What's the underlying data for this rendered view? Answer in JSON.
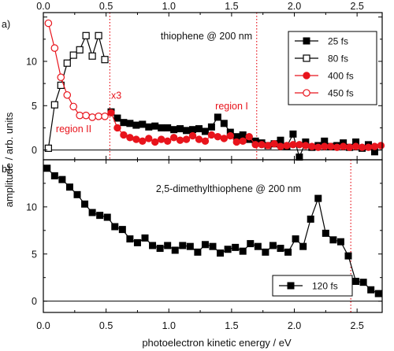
{
  "chart_data": [
    {
      "panel_label": "a)",
      "type": "line",
      "title": "thiophene @ 200 nm",
      "xlabel": "photoelectron kinetic energy / eV",
      "ylabel": "amplitude / arb. units",
      "xlim": [
        0,
        2.7
      ],
      "ylim": [
        -1.1,
        15.5
      ],
      "x_ticks": [
        "0.0",
        "0.5",
        "1.0",
        "1.5",
        "2.0",
        "2.5"
      ],
      "y_ticks": [
        "0",
        "5",
        "10"
      ],
      "legend_position": "top-right",
      "series": [
        {
          "name": "25 fs",
          "color": "#000000",
          "marker": "filled-square",
          "x": [
            0.54,
            0.59,
            0.64,
            0.69,
            0.74,
            0.79,
            0.84,
            0.89,
            0.94,
            0.99,
            1.04,
            1.09,
            1.14,
            1.19,
            1.24,
            1.29,
            1.34,
            1.39,
            1.44,
            1.49,
            1.54,
            1.59,
            1.64,
            1.69,
            1.74,
            1.79,
            1.84,
            1.89,
            1.94,
            1.99,
            2.04,
            2.09,
            2.14,
            2.19,
            2.24,
            2.29,
            2.34,
            2.39,
            2.44,
            2.49,
            2.54,
            2.59,
            2.64
          ],
          "y": [
            4.3,
            3.6,
            3.1,
            3.0,
            2.8,
            2.9,
            2.6,
            2.7,
            2.5,
            2.5,
            2.3,
            2.4,
            2.2,
            2.3,
            2.4,
            2.1,
            2.6,
            3.7,
            3.0,
            2.0,
            1.5,
            1.7,
            1.2,
            1.0,
            0.8,
            0.5,
            0.7,
            1.1,
            0.4,
            1.8,
            -0.8,
            0.9,
            0.3,
            0.5,
            1.0,
            0.4,
            0.5,
            0.8,
            0.3,
            0.9,
            0.2,
            0.6,
            -0.2
          ]
        },
        {
          "name": "80 fs",
          "color": "#000000",
          "marker": "open-square",
          "x": [
            0.04,
            0.09,
            0.14,
            0.19,
            0.24,
            0.29,
            0.34,
            0.39,
            0.44,
            0.49
          ],
          "y": [
            0.2,
            5.1,
            7.3,
            9.8,
            10.7,
            11.3,
            12.9,
            10.6,
            12.9,
            10.2
          ]
        },
        {
          "name": "400 fs",
          "color": "#e8141c",
          "marker": "filled-circle",
          "x": [
            0.54,
            0.59,
            0.64,
            0.69,
            0.74,
            0.79,
            0.84,
            0.89,
            0.94,
            0.99,
            1.04,
            1.09,
            1.14,
            1.19,
            1.24,
            1.29,
            1.34,
            1.39,
            1.44,
            1.49,
            1.54,
            1.59,
            1.64,
            1.69,
            1.74,
            1.79,
            1.84,
            1.89,
            1.94,
            1.99,
            2.04,
            2.09,
            2.14,
            2.19,
            2.24,
            2.29,
            2.34,
            2.39,
            2.44,
            2.49,
            2.54,
            2.59,
            2.64,
            2.69
          ],
          "y": [
            4.2,
            2.5,
            1.7,
            1.4,
            1.2,
            1.0,
            1.3,
            0.9,
            1.2,
            1.0,
            1.4,
            1.1,
            1.2,
            1.6,
            1.2,
            1.0,
            1.7,
            1.5,
            1.3,
            1.6,
            0.9,
            1.0,
            1.5,
            0.6,
            0.6,
            0.5,
            0.7,
            0.4,
            0.5,
            0.6,
            0.6,
            0.5,
            0.4,
            0.3,
            0.4,
            0.4,
            0.3,
            0.4,
            0.3,
            0.4,
            0.3,
            0.3,
            0.4,
            0.5
          ]
        },
        {
          "name": "450 fs",
          "color": "#e8141c",
          "marker": "open-circle",
          "x": [
            0.04,
            0.09,
            0.14,
            0.19,
            0.24,
            0.29,
            0.34,
            0.39,
            0.44,
            0.49
          ],
          "y": [
            14.3,
            11.5,
            8.2,
            6.2,
            4.9,
            3.9,
            3.9,
            3.7,
            3.8,
            3.8
          ]
        }
      ],
      "vlines": [
        {
          "x": 0.53,
          "color": "#e8141c"
        },
        {
          "x": 1.7,
          "color": "#e8141c"
        }
      ],
      "annotations": [
        {
          "text": "x3",
          "x": 0.54,
          "y": 5.8,
          "color": "#e8141c"
        },
        {
          "text": "region I",
          "x": 1.37,
          "y": 4.6,
          "color": "#e8141c"
        },
        {
          "text": "region II",
          "x": 0.1,
          "y": 2.0,
          "color": "#e8141c"
        }
      ]
    },
    {
      "panel_label": "b)",
      "type": "line",
      "title": "2,5-dimethylthiophene @ 200 nm",
      "xlabel": "photoelectron kinetic energy / eV",
      "ylabel": "amplitude / arb. units",
      "xlim": [
        0,
        2.7
      ],
      "ylim": [
        -1.2,
        15.0
      ],
      "x_ticks": [
        "0.0",
        "0.5",
        "1.0",
        "1.5",
        "2.0",
        "2.5"
      ],
      "y_ticks": [
        "0",
        "5",
        "10"
      ],
      "legend_position": "bottom-right",
      "series": [
        {
          "name": "120 fs",
          "color": "#000000",
          "marker": "filled-square",
          "x": [
            0.03,
            0.09,
            0.15,
            0.21,
            0.27,
            0.33,
            0.39,
            0.45,
            0.51,
            0.57,
            0.63,
            0.69,
            0.75,
            0.81,
            0.87,
            0.93,
            0.99,
            1.05,
            1.11,
            1.17,
            1.23,
            1.29,
            1.35,
            1.41,
            1.47,
            1.53,
            1.59,
            1.65,
            1.71,
            1.77,
            1.83,
            1.89,
            1.95,
            2.01,
            2.07,
            2.13,
            2.19,
            2.25,
            2.31,
            2.37,
            2.43,
            2.49,
            2.55,
            2.61,
            2.67
          ],
          "y": [
            14.1,
            13.3,
            12.9,
            12.1,
            11.3,
            10.3,
            9.4,
            9.1,
            8.9,
            7.9,
            7.6,
            6.6,
            6.2,
            6.7,
            5.9,
            5.6,
            5.9,
            5.4,
            5.9,
            5.8,
            5.2,
            6.0,
            5.8,
            5.1,
            5.5,
            5.7,
            5.3,
            6.1,
            5.8,
            5.2,
            5.9,
            5.6,
            5.2,
            6.6,
            5.8,
            8.7,
            10.9,
            7.2,
            6.5,
            6.3,
            4.8,
            2.1,
            2.0,
            1.2,
            0.8
          ]
        }
      ],
      "vlines": [
        {
          "x": 2.45,
          "color": "#e8141c"
        }
      ],
      "annotations": []
    }
  ]
}
